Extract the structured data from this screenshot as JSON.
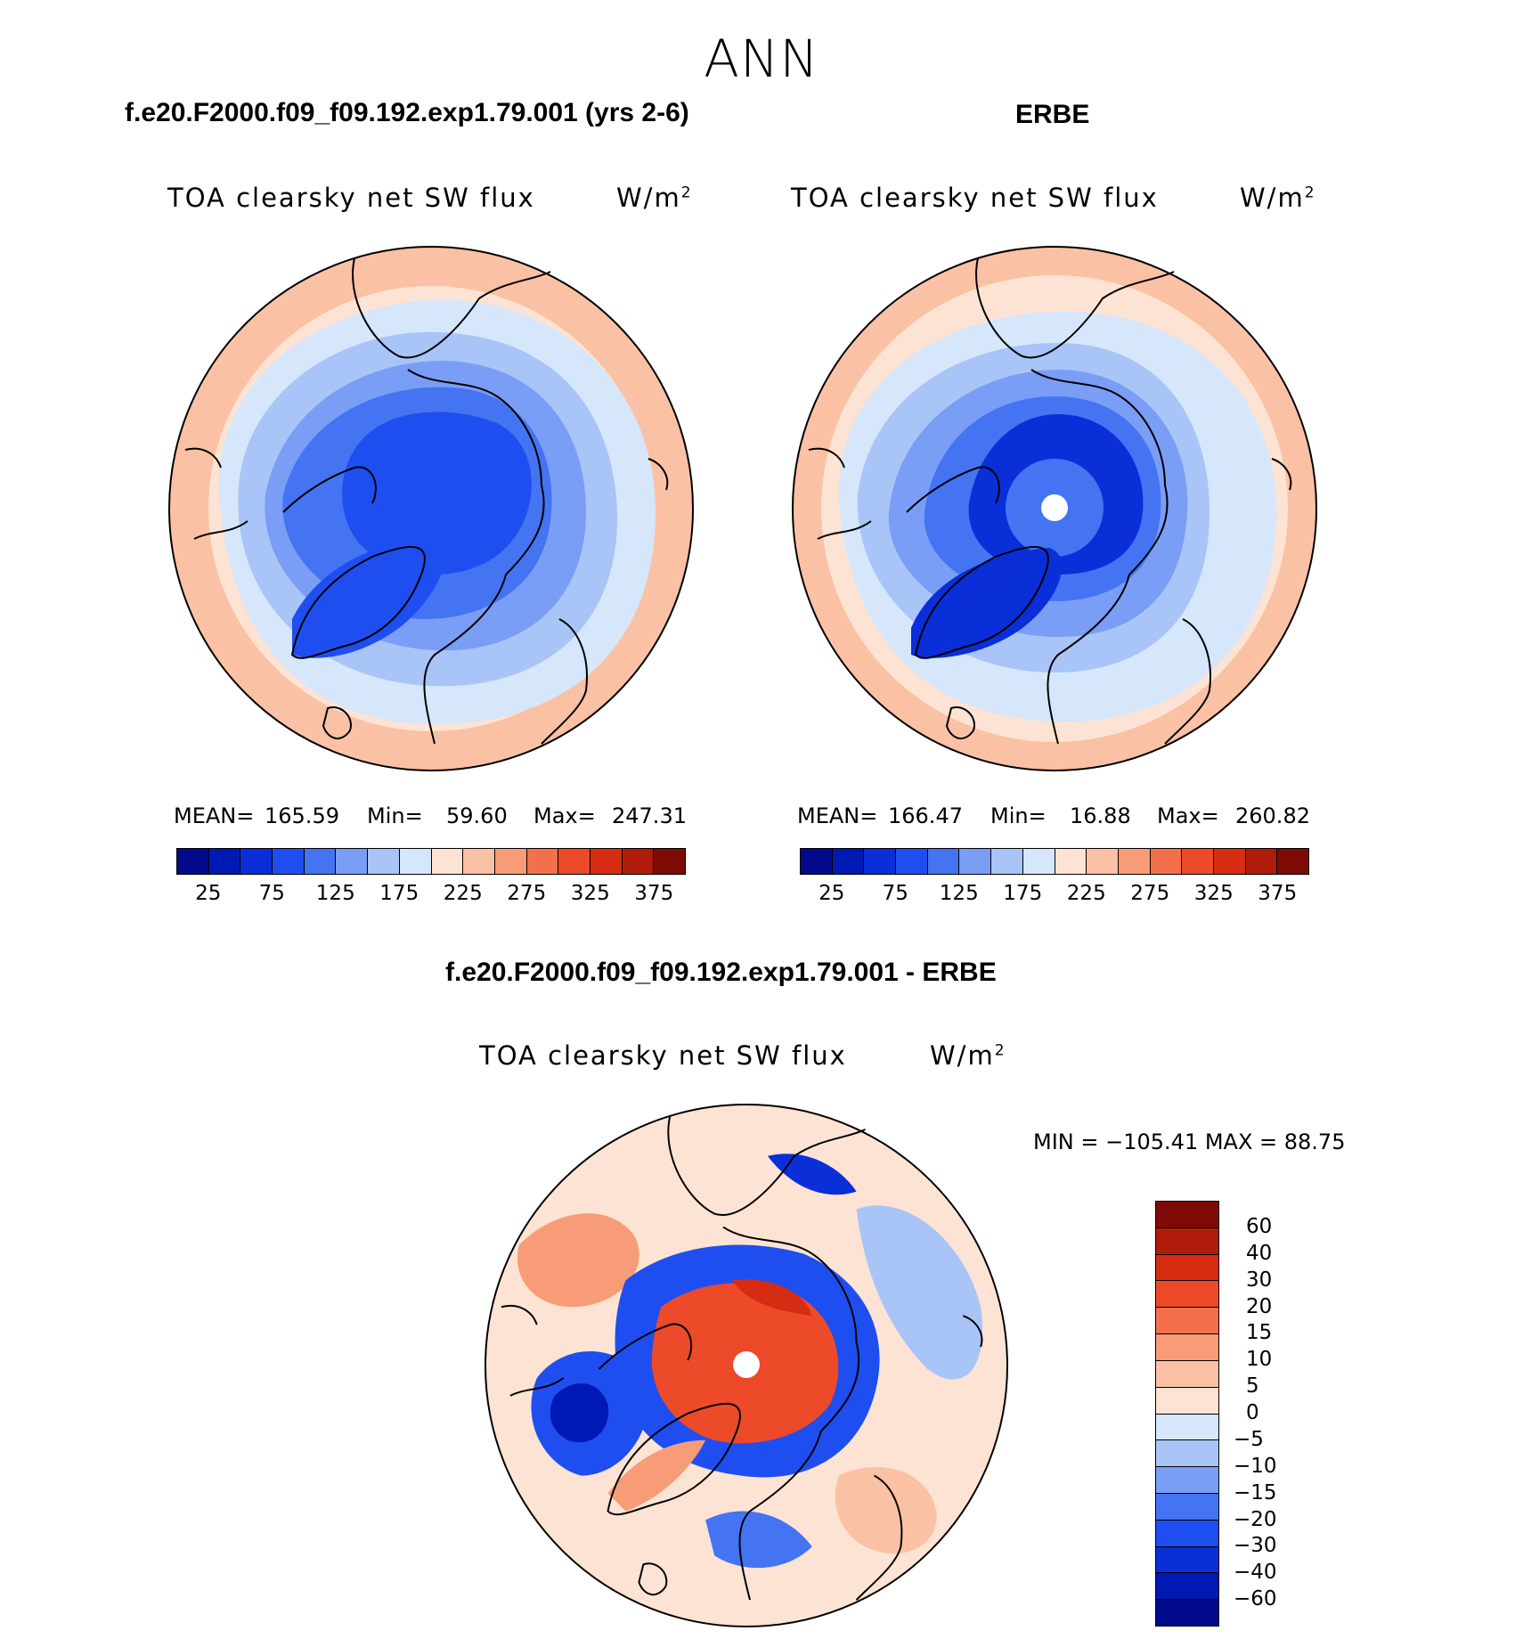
{
  "season": "ANN",
  "panels": [
    {
      "case_title": "f.e20.F2000.f09_f09.192.exp1.79.001 (yrs 2-6)",
      "variable": "TOA clearsky net SW flux",
      "units": "W/m",
      "units_sup": "2",
      "mean_label": "MEAN=",
      "mean": "165.59",
      "min_label": "Min=",
      "min": "59.60",
      "max_label": "Max=",
      "max": "247.31"
    },
    {
      "case_title": "ERBE",
      "variable": "TOA clearsky net SW flux",
      "units": "W/m",
      "units_sup": "2",
      "mean_label": "MEAN=",
      "mean": "166.47",
      "min_label": "Min=",
      "min": "16.88",
      "max_label": "Max=",
      "max": "260.82"
    }
  ],
  "diff_panel": {
    "case_title": "f.e20.F2000.f09_f09.192.exp1.79.001 - ERBE",
    "variable": "TOA clearsky net SW flux",
    "units": "W/m",
    "units_sup": "2",
    "minmax_text": "MIN = −105.41  MAX =    88.75"
  },
  "colorbar_abs": {
    "tick_labels": [
      "25",
      "75",
      "125",
      "175",
      "225",
      "275",
      "325",
      "375"
    ],
    "colors": [
      "#000a8a",
      "#0019b4",
      "#0a2fd8",
      "#1f4ef0",
      "#4474f2",
      "#7a9ef5",
      "#a9c4f7",
      "#d6e6fb",
      "#fde3d3",
      "#fbc1a4",
      "#f89c78",
      "#f4704c",
      "#ec4a28",
      "#d62d12",
      "#b01c0a",
      "#7e0a05"
    ]
  },
  "colorbar_diff": {
    "tick_labels": [
      "60",
      "40",
      "30",
      "20",
      "15",
      "10",
      "5",
      "0",
      "−5",
      "−10",
      "−15",
      "−20",
      "−30",
      "−40",
      "−60"
    ],
    "colors": [
      "#7e0a05",
      "#b01c0a",
      "#d62d12",
      "#ec4a28",
      "#f4704c",
      "#f89c78",
      "#fbc1a4",
      "#fde3d3",
      "#d6e6fb",
      "#a9c4f7",
      "#7a9ef5",
      "#4474f2",
      "#1f4ef0",
      "#0a2fd8",
      "#0019b4",
      "#000a8a"
    ]
  },
  "map_colors": {
    "outer_warm": "#fbc1a4",
    "outer_light": "#fde3d3",
    "blue_pale": "#d6e6fb",
    "blue_light": "#a9c4f7",
    "blue_mid": "#7a9ef5",
    "blue": "#4474f2",
    "blue_dark": "#1f4ef0",
    "blue_deeper": "#0a2fd8",
    "red_core": "#ec4a28",
    "red_dark": "#d62d12",
    "red_light": "#f89c78"
  }
}
